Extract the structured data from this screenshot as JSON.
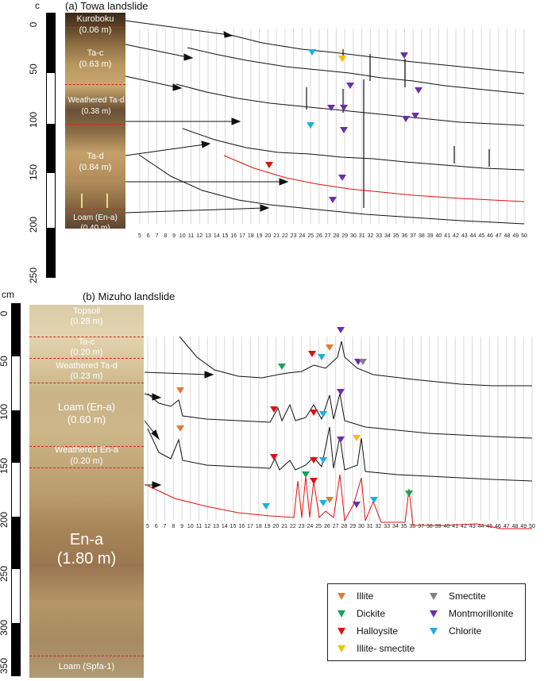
{
  "panel_a": {
    "title": "(a)  Towa landslide",
    "unit": "c",
    "depth_ticks": [
      "0",
      "50",
      "100",
      "150",
      "200",
      "250"
    ],
    "layers": [
      {
        "name": "Kuroboku",
        "thickness": "(0.06 m)"
      },
      {
        "name": "Ta-c",
        "thickness": "(0.63 m)"
      },
      {
        "name": "Weathered Ta-d",
        "thickness": "(0.38 m)"
      },
      {
        "name": "Ta-d",
        "thickness": "(0.84 m)"
      },
      {
        "name": "Loam (En-a)",
        "thickness": "(0.40 m)"
      }
    ],
    "x_ticks": [
      "5",
      "6",
      "7",
      "8",
      "9",
      "10",
      "11",
      "12",
      "13",
      "14",
      "15",
      "16",
      "17",
      "18",
      "19",
      "20",
      "21",
      "22",
      "23",
      "24",
      "25",
      "26",
      "27",
      "28",
      "29",
      "30",
      "31",
      "32",
      "33",
      "34",
      "35",
      "36",
      "37",
      "38",
      "39",
      "40",
      "41",
      "42",
      "43",
      "44",
      "45",
      "46",
      "47",
      "48",
      "49",
      "50"
    ]
  },
  "panel_b": {
    "title": "(b)  Mizuho landslide",
    "unit": "cm",
    "depth_ticks": [
      "0",
      "50",
      "100",
      "150",
      "200",
      "250",
      "300",
      "350"
    ],
    "layers": [
      {
        "name": "Topsoil",
        "thickness": "(0.28 m)"
      },
      {
        "name": "Ta-c",
        "thickness": "(0.20 m)"
      },
      {
        "name": "Weathered Ta-d",
        "thickness": "(0.23 m)"
      },
      {
        "name": "Loam (En-a)",
        "thickness": "(0.60 m)"
      },
      {
        "name": "Weathered En-a",
        "thickness": "(0.20 m)"
      },
      {
        "name": "En-a",
        "thickness": "(1.80 m)"
      },
      {
        "name": "Loam (Spfa-1)",
        "thickness": ""
      }
    ],
    "x_ticks": [
      "5",
      "6",
      "7",
      "8",
      "9",
      "10",
      "11",
      "12",
      "13",
      "14",
      "15",
      "16",
      "17",
      "18",
      "19",
      "20",
      "21",
      "22",
      "23",
      "24",
      "25",
      "26",
      "27",
      "28",
      "29",
      "30",
      "31",
      "32",
      "33",
      "34",
      "35",
      "36",
      "37",
      "38",
      "39",
      "40",
      "41",
      "42",
      "43",
      "44",
      "45",
      "46",
      "47",
      "48",
      "49",
      "50"
    ]
  },
  "legend": [
    {
      "label": "Illite",
      "color": "#e07b39"
    },
    {
      "label": "Smectite",
      "color": "#808080"
    },
    {
      "label": "Dickite",
      "color": "#1aa05a"
    },
    {
      "label": "Montmorillonite",
      "color": "#6a2fa8"
    },
    {
      "label": "Halloysite",
      "color": "#e01010"
    },
    {
      "label": "Chlorite",
      "color": "#1ab0e0"
    },
    {
      "label": "Illite- smectite",
      "color": "#f5c000"
    }
  ]
}
